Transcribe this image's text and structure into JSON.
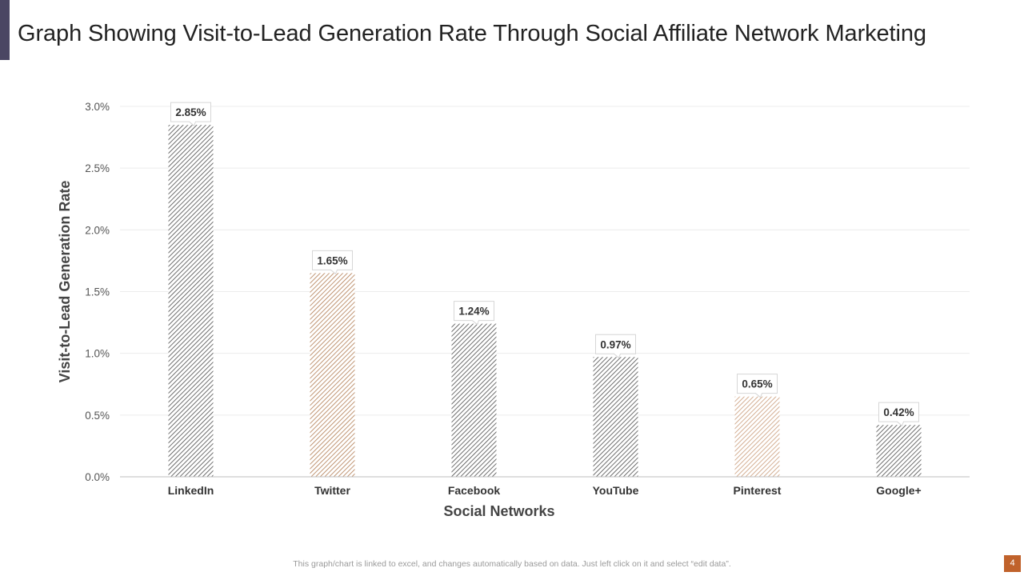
{
  "slide": {
    "title": "Graph Showing Visit-to-Lead Generation Rate Through Social Affiliate Network Marketing",
    "footer_note": "This graph/chart is linked to excel,  and changes automatically based on data. Just left click on it and select “edit data”.",
    "page_number": "4",
    "accent_color": "#4a4663",
    "page_number_color": "#c0622b"
  },
  "chart_data": {
    "type": "bar",
    "title": "",
    "xlabel": "Social Networks",
    "ylabel": "Visit-to-Lead Generation Rate",
    "categories": [
      "LinkedIn",
      "Twitter",
      "Facebook",
      "YouTube",
      "Pinterest",
      "Google+"
    ],
    "values": [
      2.85,
      1.65,
      1.24,
      0.97,
      0.65,
      0.42
    ],
    "data_labels": [
      "2.85%",
      "1.65%",
      "1.24%",
      "0.97%",
      "0.65%",
      "0.42%"
    ],
    "bar_colors": [
      "#4a4a4a",
      "#b07a50",
      "#4a4a4a",
      "#4a4a4a",
      "#c99a78",
      "#4a4a4a"
    ],
    "pattern": "diagonal-hatch",
    "ylim": [
      0,
      3.0
    ],
    "yticks": [
      0.0,
      0.5,
      1.0,
      1.5,
      2.0,
      2.5,
      3.0
    ],
    "ytick_labels": [
      "0.0%",
      "0.5%",
      "1.0%",
      "1.5%",
      "2.0%",
      "2.5%",
      "3.0%"
    ],
    "grid": true,
    "legend": "none"
  }
}
